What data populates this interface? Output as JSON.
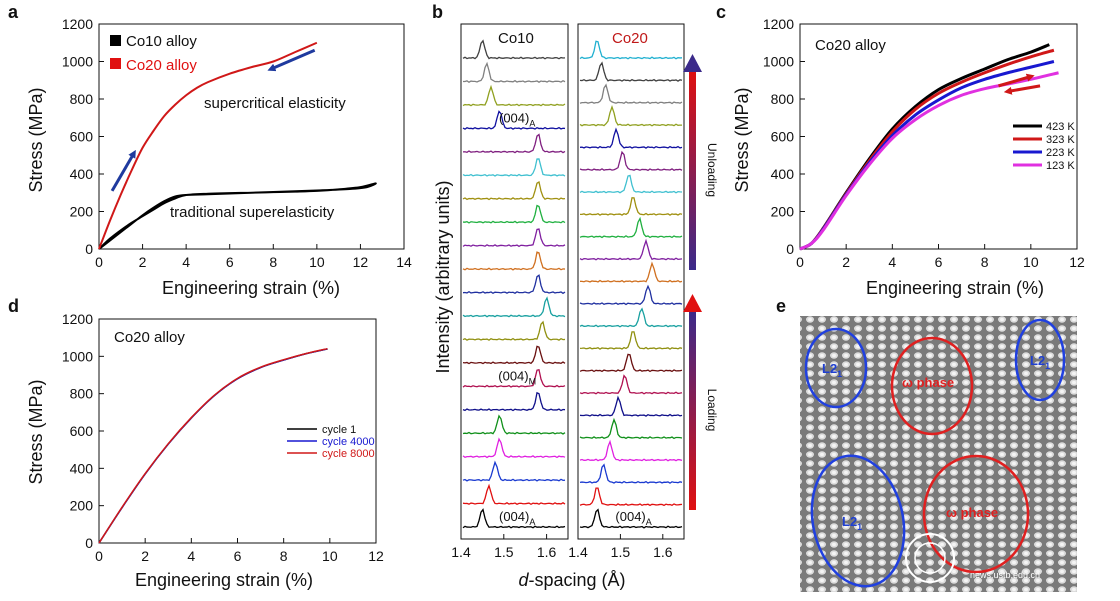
{
  "panel_labels": {
    "a": "a",
    "b": "b",
    "c": "c",
    "d": "d",
    "e": "e"
  },
  "chart_data": [
    {
      "panel": "a",
      "type": "line",
      "title": "",
      "xlabel": "Engineering strain (%)",
      "ylabel": "Stress (MPa)",
      "xlim": [
        0,
        14
      ],
      "ylim": [
        0,
        1200
      ],
      "xticks": [
        "0",
        "2",
        "4",
        "6",
        "8",
        "10",
        "12",
        "14"
      ],
      "yticks": [
        "0",
        "200",
        "400",
        "600",
        "800",
        "1000",
        "1200"
      ],
      "legend": {
        "position": "top-left",
        "entries": [
          {
            "label": "Co10 alloy",
            "color": "#000000",
            "label_color": "#000000"
          },
          {
            "label": "Co20 alloy",
            "color": "#e01010",
            "label_color": "#e01010"
          }
        ]
      },
      "series": [
        {
          "name": "Co10 alloy",
          "color": "#000000",
          "x": [
            0,
            0.5,
            1,
            1.5,
            2,
            2.5,
            3,
            3.5,
            4,
            5,
            6,
            7,
            8,
            9,
            10,
            11,
            12,
            12.7,
            12.3,
            11.5,
            10,
            9,
            8,
            7,
            6,
            5,
            4,
            3.5,
            3,
            2.5,
            2,
            1.5,
            1,
            0.5,
            0
          ],
          "y": [
            0,
            55,
            100,
            140,
            175,
            210,
            245,
            270,
            288,
            295,
            298,
            300,
            303,
            306,
            310,
            318,
            330,
            350,
            330,
            320,
            312,
            308,
            304,
            300,
            296,
            292,
            288,
            280,
            255,
            220,
            180,
            135,
            90,
            45,
            0
          ]
        },
        {
          "name": "Co20 alloy",
          "color": "#d01818",
          "x": [
            0,
            0.5,
            1,
            1.5,
            2,
            2.5,
            3,
            3.5,
            4,
            4.5,
            5,
            6,
            7,
            8,
            9,
            10
          ],
          "y": [
            0,
            150,
            290,
            420,
            540,
            630,
            710,
            770,
            820,
            860,
            890,
            935,
            970,
            1000,
            1050,
            1100
          ]
        }
      ],
      "annotations": [
        {
          "text": "supercritical elasticity",
          "x": 4.8,
          "y": 730
        },
        {
          "text": "traditional superelasticity",
          "x": 3.3,
          "y": 180
        }
      ],
      "arrows": [
        {
          "color": "#1f3a9e",
          "from": [
            0.6,
            310
          ],
          "to": [
            1.6,
            510
          ]
        },
        {
          "color": "#1f3a9e",
          "from": [
            9.9,
            1060
          ],
          "to": [
            7.9,
            960
          ]
        }
      ]
    },
    {
      "panel": "b",
      "type": "line",
      "title": "",
      "xlabel": "-spacing (Å)",
      "xlabel_italic_prefix": "d",
      "ylabel": "Intensity (arbitrary units)",
      "xticks_left": [
        "1.4",
        "1.5",
        "1.6"
      ],
      "xticks_right": [
        "1.4",
        "1.5",
        "1.6"
      ],
      "xlim": [
        1.4,
        1.65
      ],
      "subpanels": [
        {
          "name": "Co10",
          "label_color": "#111111",
          "peaks": [
            1.45,
            1.465,
            1.48,
            1.49,
            1.49,
            1.58,
            1.58,
            1.58,
            1.59,
            1.6,
            1.58,
            1.58,
            1.58,
            1.58,
            1.58,
            1.58,
            1.58,
            1.49,
            1.47,
            1.46,
            1.45
          ],
          "labels": [
            {
              "text": "(004)",
              "sub": "A",
              "index": 0
            },
            {
              "text": "(004)",
              "sub": "M",
              "index": 6
            },
            {
              "text": "(004)",
              "sub": "A",
              "index": 17
            }
          ]
        },
        {
          "name": "Co20",
          "label_color": "#c01818",
          "peaks": [
            1.445,
            1.445,
            1.46,
            1.475,
            1.485,
            1.495,
            1.51,
            1.52,
            1.53,
            1.55,
            1.565,
            1.575,
            1.56,
            1.545,
            1.53,
            1.52,
            1.505,
            1.49,
            1.48,
            1.465,
            1.455,
            1.445
          ],
          "labels": [
            {
              "text": "(004)",
              "sub": "A",
              "index": 0
            }
          ]
        }
      ],
      "trace_colors": [
        "#000000",
        "#e01010",
        "#1a3ad0",
        "#e020e0",
        "#10901a",
        "#10108a",
        "#b01050",
        "#6a1010",
        "#909010",
        "#18a0a0",
        "#2030a0",
        "#d07020",
        "#8020a0",
        "#20b040",
        "#a09010",
        "#40c0d0",
        "#802080",
        "#1010a0",
        "#90a020",
        "#808080",
        "#404040",
        "#20b0d0"
      ],
      "arrow_labels": {
        "loading": "Loading",
        "unloading": "Unloading"
      }
    },
    {
      "panel": "c",
      "type": "line",
      "title": "",
      "xlabel": "Engineering strain (%)",
      "ylabel": "Stress (MPa)",
      "xlim": [
        0,
        12
      ],
      "ylim": [
        0,
        1200
      ],
      "xticks": [
        "0",
        "2",
        "4",
        "6",
        "8",
        "10",
        "12"
      ],
      "yticks": [
        "0",
        "200",
        "400",
        "600",
        "800",
        "1000",
        "1200"
      ],
      "annotation": "Co20 alloy",
      "legend": {
        "position": "right",
        "entries": [
          {
            "label": "423 K",
            "color": "#000000"
          },
          {
            "label": "323 K",
            "color": "#d01818"
          },
          {
            "label": "223 K",
            "color": "#1818d0"
          },
          {
            "label": "123 K",
            "color": "#e030e0"
          }
        ]
      },
      "series": [
        {
          "name": "423 K",
          "color": "#000000",
          "x": [
            0,
            0.5,
            1,
            2,
            3,
            4,
            5,
            6,
            7,
            8,
            9,
            10,
            10.8
          ],
          "y": [
            0,
            30,
            110,
            300,
            480,
            640,
            760,
            850,
            910,
            960,
            1010,
            1050,
            1090
          ]
        },
        {
          "name": "323 K",
          "color": "#d01818",
          "x": [
            0,
            0.5,
            1,
            2,
            3,
            4,
            5,
            6,
            7,
            8,
            9,
            10,
            11
          ],
          "y": [
            0,
            30,
            108,
            295,
            470,
            625,
            745,
            830,
            890,
            940,
            985,
            1025,
            1060
          ]
        },
        {
          "name": "223 K",
          "color": "#1818d0",
          "x": [
            0,
            0.5,
            1,
            2,
            3,
            4,
            5,
            6,
            7,
            8,
            9,
            10,
            11
          ],
          "y": [
            0,
            30,
            105,
            290,
            460,
            605,
            715,
            795,
            860,
            905,
            940,
            970,
            1000
          ]
        },
        {
          "name": "123 K",
          "color": "#e030e0",
          "x": [
            0,
            0.5,
            1,
            2,
            3,
            4,
            5,
            6,
            7,
            8,
            9,
            10,
            11.2
          ],
          "y": [
            0,
            30,
            100,
            285,
            450,
            590,
            690,
            765,
            820,
            855,
            880,
            905,
            940
          ]
        }
      ],
      "arrows": [
        {
          "color": "#d01818",
          "from": [
            8.6,
            870
          ],
          "to": [
            10.0,
            920
          ]
        },
        {
          "color": "#d01818",
          "from": [
            10.4,
            870
          ],
          "to": [
            9.0,
            840
          ]
        }
      ]
    },
    {
      "panel": "d",
      "type": "line",
      "title": "",
      "xlabel": "Engineering strain (%)",
      "ylabel": "Stress (MPa)",
      "xlim": [
        0,
        12
      ],
      "ylim": [
        0,
        1200
      ],
      "xticks": [
        "0",
        "2",
        "4",
        "6",
        "8",
        "10",
        "12"
      ],
      "yticks": [
        "0",
        "200",
        "400",
        "600",
        "800",
        "1000",
        "1200"
      ],
      "annotation": "Co20 alloy",
      "legend": {
        "position": "right",
        "entries": [
          {
            "label": "cycle 1",
            "color": "#000000",
            "label_color": "#000000"
          },
          {
            "label": "cycle 4000",
            "color": "#1818d0",
            "label_color": "#1818d0"
          },
          {
            "label": "cycle 8000",
            "color": "#d01818",
            "label_color": "#d01818"
          }
        ]
      },
      "series": [
        {
          "name": "cycle 1",
          "color": "#000000",
          "x": [
            0,
            1,
            2,
            3,
            4,
            5,
            6,
            7,
            8,
            9,
            9.9
          ],
          "y": [
            0,
            190,
            370,
            530,
            670,
            790,
            880,
            940,
            980,
            1015,
            1040
          ]
        },
        {
          "name": "cycle 4000",
          "color": "#1818d0",
          "x": [
            0,
            1,
            2,
            3,
            4,
            5,
            6,
            7,
            8,
            9,
            9.9
          ],
          "y": [
            0,
            190,
            370,
            530,
            670,
            790,
            880,
            940,
            980,
            1015,
            1040
          ]
        },
        {
          "name": "cycle 8000",
          "color": "#d01818",
          "x": [
            0,
            1,
            2,
            3,
            4,
            5,
            6,
            7,
            8,
            9,
            9.9
          ],
          "y": [
            0,
            192,
            372,
            532,
            672,
            792,
            882,
            942,
            982,
            1016,
            1041
          ]
        }
      ]
    }
  ],
  "panel_e": {
    "labels": [
      {
        "text": "L2",
        "sub": "1",
        "color": "#1f3fd0"
      },
      {
        "text": "ω phase",
        "color": "#e02020"
      },
      {
        "text": "L2",
        "sub": "1",
        "color": "#1f3fd0"
      },
      {
        "text": "L2",
        "sub": "1",
        "color": "#1f3fd0"
      },
      {
        "text": "ω phase",
        "color": "#e02020"
      }
    ],
    "watermark": "news.ustb.edu.cn"
  }
}
